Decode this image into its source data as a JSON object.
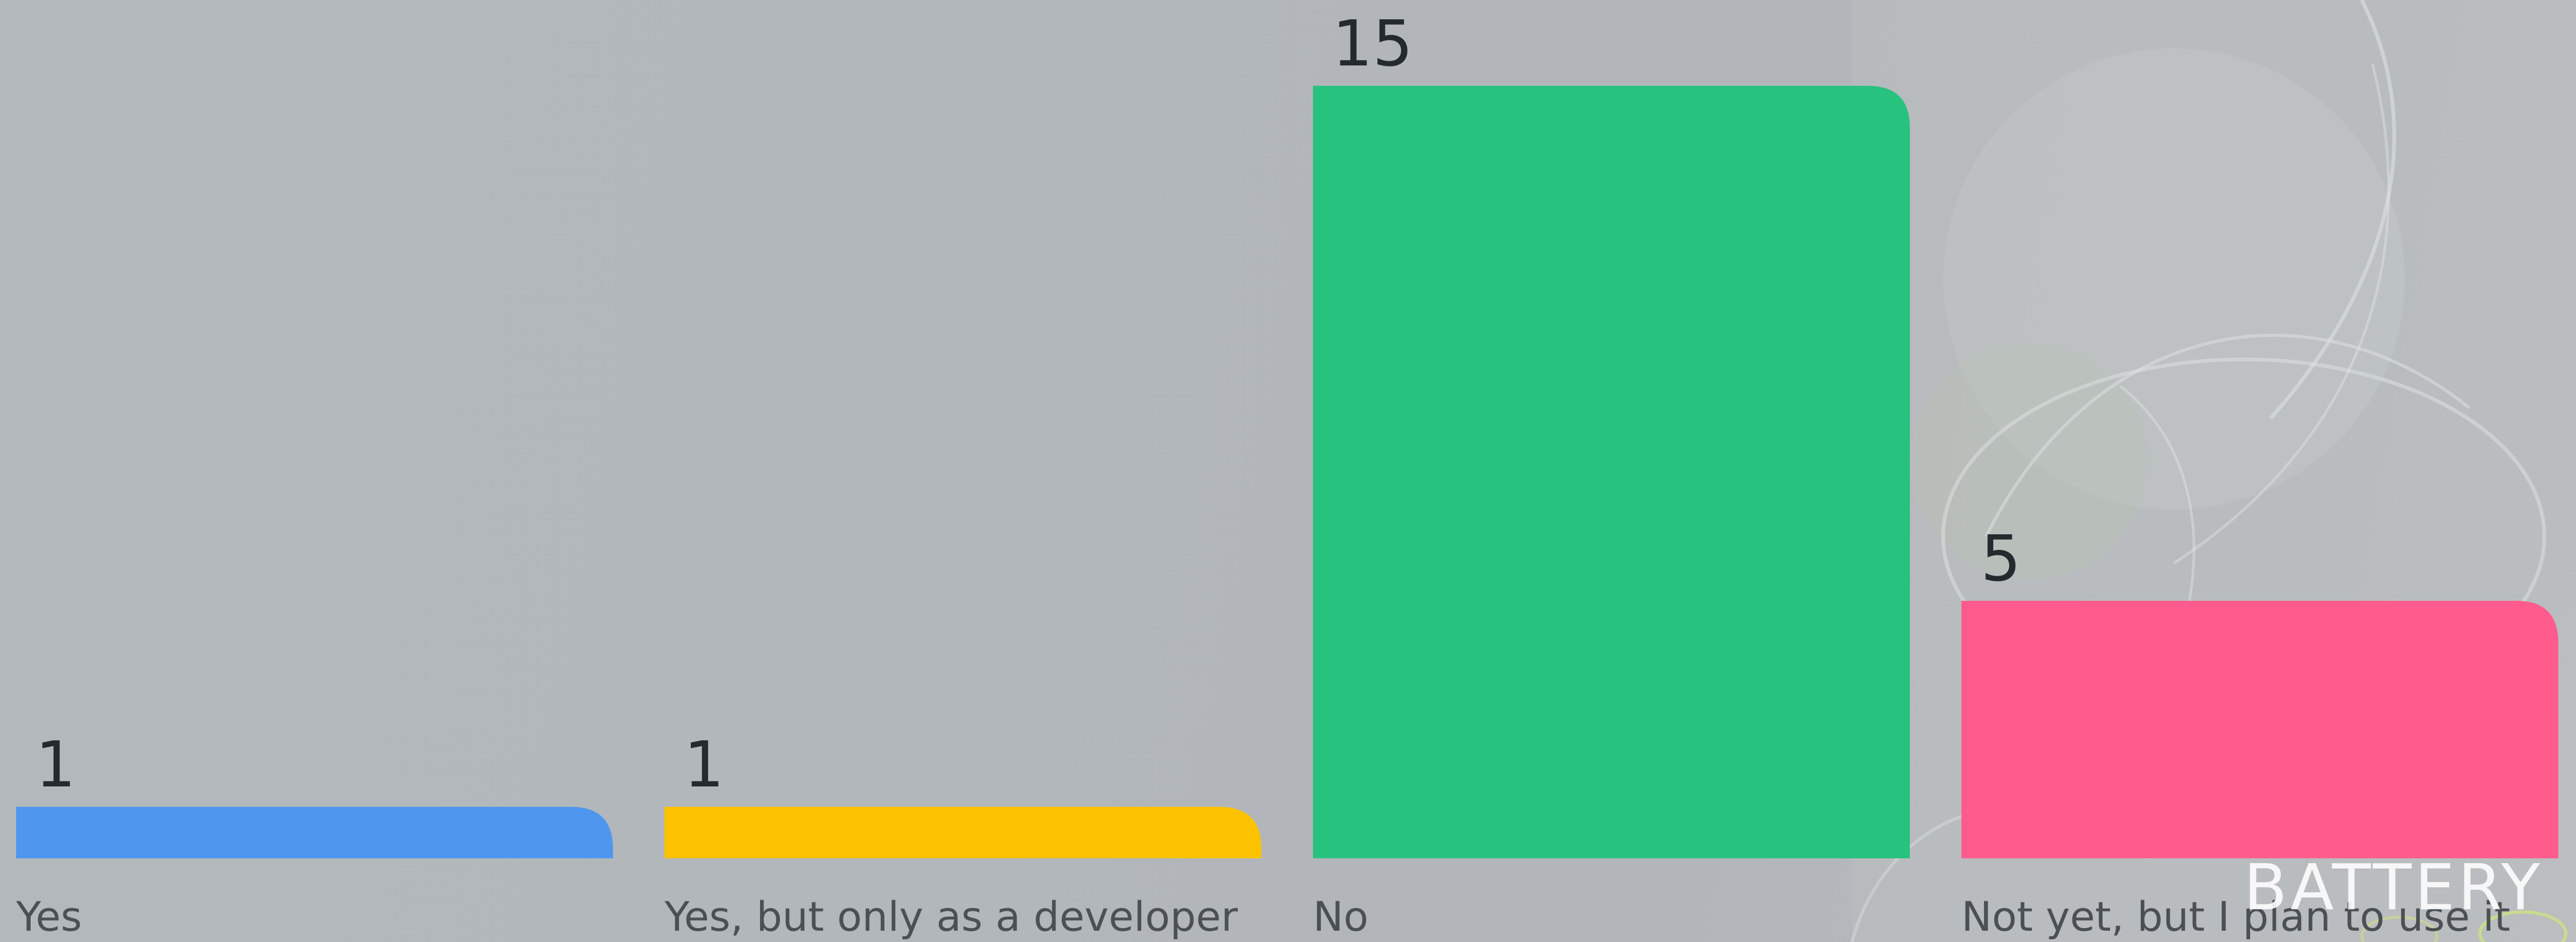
{
  "chart_data": {
    "type": "bar",
    "categories": [
      "Yes",
      "Yes, but only as a developer",
      "No",
      "Not yet, but I plan to use it"
    ],
    "values": [
      1,
      1,
      15,
      5
    ],
    "value_labels": [
      "1",
      "1",
      "15",
      "5"
    ],
    "colors": [
      "#4f97ee",
      "#fcc200",
      "#28c27f",
      "#ff5c8d"
    ],
    "title": "",
    "xlabel": "",
    "ylabel": "",
    "ylim": [
      0,
      15
    ],
    "grid": false,
    "legend": "none"
  },
  "watermark": {
    "text": "BATTERY"
  }
}
